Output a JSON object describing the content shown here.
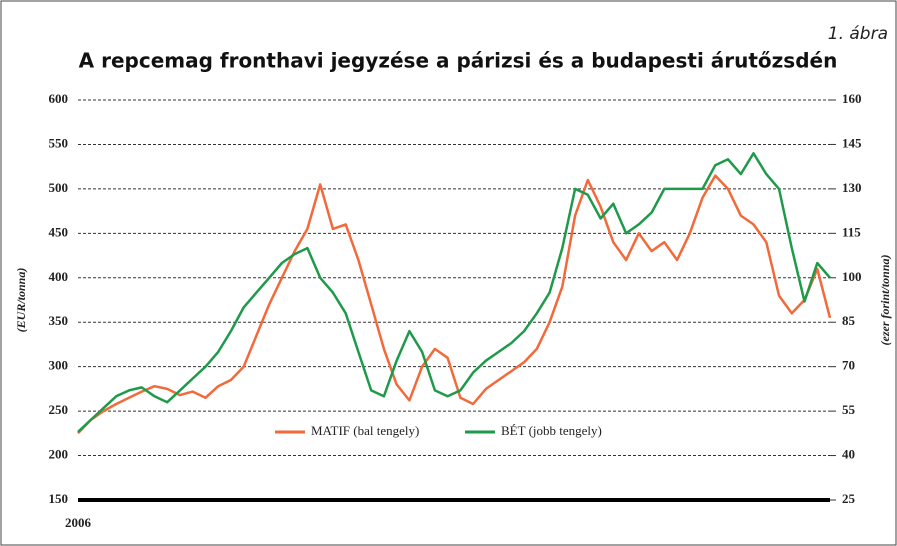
{
  "chart_data": {
    "type": "line",
    "figure_label": "1. ábra",
    "title": "A repcemag fronthavi jegyzése a párizsi és a budapesti árutőzsdén",
    "ylabel": "(EUR/tonna)",
    "y2label": "(ezer forint/tonna)",
    "categories": [
      "2006",
      null,
      null,
      null,
      null,
      null,
      null,
      null,
      null,
      null,
      null,
      null,
      null,
      null,
      null,
      null,
      null,
      null,
      null,
      null,
      null,
      null,
      null,
      null,
      null,
      null,
      null,
      null,
      null,
      null,
      null,
      null,
      null,
      null,
      null,
      null,
      null,
      null,
      null,
      null,
      null,
      null,
      null,
      null,
      null,
      null,
      null,
      null,
      null,
      null,
      null,
      null,
      null,
      null,
      null,
      null,
      null,
      null,
      null,
      null
    ],
    "series": [
      {
        "name": "MATIF (bal tengely)",
        "color": "#f26a3a",
        "values": [
          225,
          240,
          250,
          258,
          265,
          272,
          278,
          275,
          268,
          272,
          265,
          278,
          285,
          300,
          335,
          370,
          400,
          430,
          455,
          505,
          455,
          460,
          420,
          370,
          320,
          280,
          262,
          300,
          320,
          310,
          265,
          258,
          275,
          285,
          295,
          305,
          320,
          350,
          390,
          470,
          510,
          480,
          440,
          420,
          450,
          430,
          440,
          420,
          450,
          490,
          515,
          500,
          470,
          460,
          440,
          380,
          360,
          375,
          410,
          355
        ]
      },
      {
        "name": "BÉT (jobb tengely)",
        "color": "#1e9a4a",
        "axis": "y2",
        "values": [
          48,
          52,
          56,
          60,
          62,
          63,
          60,
          58,
          62,
          66,
          70,
          75,
          82,
          90,
          95,
          100,
          105,
          108,
          110,
          100,
          95,
          88,
          75,
          62,
          60,
          72,
          82,
          75,
          62,
          60,
          62,
          68,
          72,
          75,
          78,
          82,
          88,
          95,
          110,
          130,
          128,
          120,
          125,
          115,
          118,
          122,
          130,
          130,
          130,
          130,
          138,
          140,
          135,
          142,
          135,
          130,
          110,
          92,
          105,
          100
        ]
      }
    ],
    "ylim": [
      150,
      600
    ],
    "yticks": [
      150,
      200,
      250,
      300,
      350,
      400,
      450,
      500,
      550,
      600
    ],
    "y2lim": [
      25,
      160
    ],
    "y2ticks": [
      25,
      40,
      55,
      70,
      85,
      100,
      115,
      130,
      145,
      160
    ],
    "grid": true
  }
}
